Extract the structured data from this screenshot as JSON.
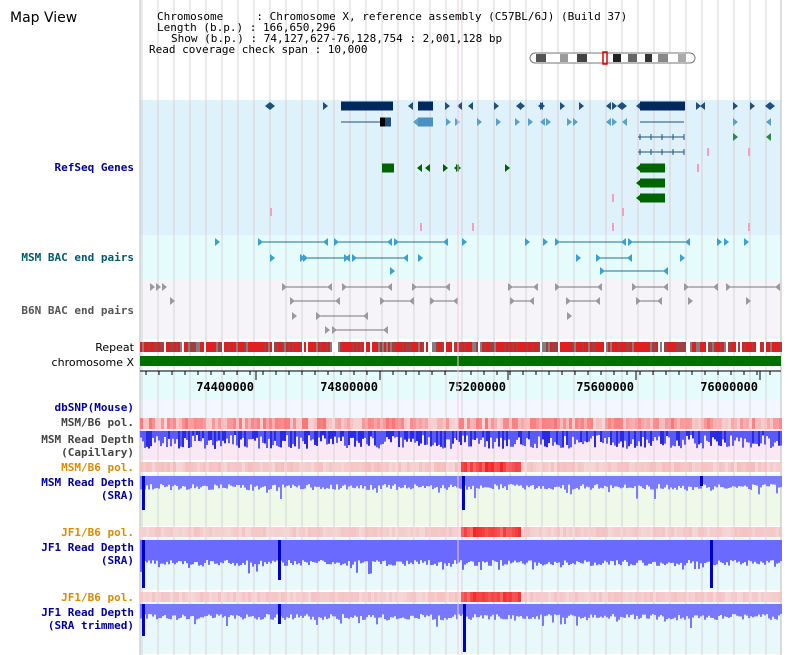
{
  "header": {
    "title": "Map View",
    "info_lines": [
      "Chromosome     : Chromosome X, reference assembly (C57BL/6J) (Build 37)",
      "Length (b.p.) : 166,650,296",
      "Show (b.p.) : 74,127,627-76,128,754 : 2,001,128 bp",
      "Read coverage check span : 10,000"
    ]
  },
  "tracks": {
    "refseq": "RefSeq Genes",
    "msm_bac": "MSM BAC end pairs",
    "b6n_bac": "B6N BAC end pairs",
    "repeat": "Repeat",
    "chromosome": "chromosome X",
    "dbsnp": "dbSNP(Mouse)",
    "msm_b6_pol_1": "MSM/B6 pol.",
    "msm_read_depth_cap": "MSM Read Depth\n(Capillary)",
    "msm_b6_pol_2": "MSM/B6 pol.",
    "msm_read_depth_sra": "MSM Read Depth\n(SRA)",
    "jf1_b6_pol_1": "JF1/B6 pol.",
    "jf1_read_depth_sra": "JF1 Read Depth\n(SRA)",
    "jf1_b6_pol_2": "JF1/B6 pol.",
    "jf1_read_depth_trim": "JF1 Read Depth\n(SRA trimmed)"
  },
  "ruler": {
    "ticks": [
      "74400000",
      "74800000",
      "75200000",
      "75600000",
      "76000000"
    ]
  },
  "colors": {
    "refseq_bg": "#dff1fb",
    "msm_bac_bg": "#e6fbfb",
    "b6n_bac_bg": "#f6f4f9",
    "ruler_bg": "#e6fbfb",
    "pol_pink": "#f5b8b8",
    "depth_blue": "#6a6aff",
    "depth_dark": "#0000d0",
    "gene_dark": "#00295e",
    "gene_green": "#006400",
    "label_blue": "#0000a0",
    "label_orange": "#e08a00"
  }
}
